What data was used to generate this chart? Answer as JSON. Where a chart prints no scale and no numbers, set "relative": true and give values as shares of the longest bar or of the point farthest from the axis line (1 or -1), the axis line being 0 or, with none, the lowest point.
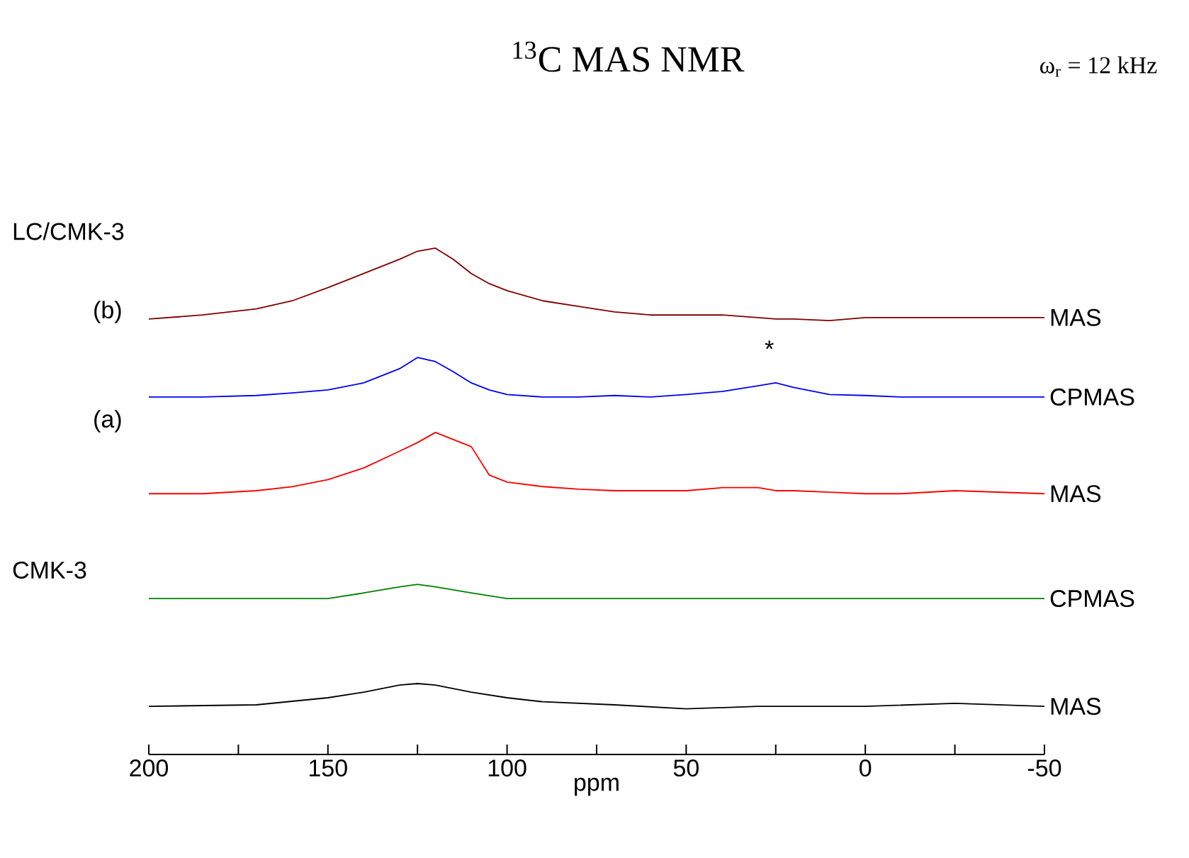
{
  "chart_data": {
    "type": "line",
    "title": "$^{13}$C MAS NMR",
    "subtitle": "ω$_{r}$ = 12 kHz",
    "xlabel": "ppm",
    "relative": true,
    "xlim": [
      200,
      -50
    ],
    "xticks": [
      200,
      {
        "value": 175,
        "label": null
      },
      150,
      {
        "value": 125,
        "label": null
      },
      100,
      {
        "value": 75,
        "label": null
      },
      50,
      {
        "value": 25,
        "label": null
      },
      0,
      {
        "value": -25,
        "label": null
      },
      -50
    ],
    "series": [
      {
        "name": "MAS",
        "color": "#800000",
        "x": [
          200,
          185,
          170,
          160,
          150,
          140,
          130,
          125,
          120,
          115,
          110,
          105,
          100,
          90,
          80,
          70,
          60,
          50,
          40,
          30,
          25,
          20,
          10,
          0,
          -10,
          -25,
          -50
        ],
        "values": [
          0.86,
          0.868,
          0.88,
          0.896,
          0.922,
          0.95,
          0.978,
          0.994,
          1.0,
          0.978,
          0.95,
          0.93,
          0.916,
          0.896,
          0.885,
          0.874,
          0.868,
          0.868,
          0.868,
          0.863,
          0.86,
          0.86,
          0.857,
          0.863,
          0.863,
          0.863,
          0.863
        ]
      },
      {
        "name": "CPMAS",
        "color": "#0000ff",
        "x": [
          200,
          185,
          170,
          160,
          150,
          140,
          130,
          125,
          120,
          115,
          110,
          105,
          100,
          90,
          80,
          70,
          60,
          50,
          40,
          30,
          25,
          20,
          10,
          0,
          -10,
          -25,
          -50
        ],
        "values": [
          0.706,
          0.706,
          0.709,
          0.714,
          0.72,
          0.734,
          0.762,
          0.784,
          0.776,
          0.756,
          0.734,
          0.72,
          0.711,
          0.706,
          0.706,
          0.709,
          0.706,
          0.711,
          0.717,
          0.728,
          0.734,
          0.725,
          0.711,
          0.709,
          0.706,
          0.706,
          0.706
        ]
      },
      {
        "name": "MAS",
        "color": "#ff0000",
        "x": [
          200,
          185,
          170,
          160,
          150,
          140,
          130,
          125,
          120,
          115,
          110,
          105,
          100,
          90,
          80,
          70,
          60,
          50,
          40,
          30,
          25,
          20,
          10,
          0,
          -10,
          -25,
          -50
        ],
        "values": [
          0.515,
          0.515,
          0.521,
          0.529,
          0.543,
          0.566,
          0.599,
          0.616,
          0.636,
          0.622,
          0.608,
          0.552,
          0.538,
          0.529,
          0.524,
          0.521,
          0.521,
          0.521,
          0.527,
          0.527,
          0.521,
          0.521,
          0.518,
          0.515,
          0.515,
          0.521,
          0.515
        ]
      },
      {
        "name": "CPMAS",
        "color": "#008000",
        "x": [
          200,
          170,
          150,
          140,
          130,
          125,
          120,
          110,
          100,
          70,
          40,
          0,
          -50
        ],
        "values": [
          0.308,
          0.308,
          0.308,
          0.319,
          0.331,
          0.336,
          0.331,
          0.319,
          0.308,
          0.308,
          0.308,
          0.308,
          0.308
        ]
      },
      {
        "name": "MAS",
        "color": "#000000",
        "x": [
          200,
          170,
          150,
          140,
          130,
          125,
          120,
          110,
          100,
          90,
          70,
          50,
          30,
          0,
          -25,
          -50
        ],
        "values": [
          0.095,
          0.098,
          0.112,
          0.123,
          0.137,
          0.14,
          0.137,
          0.123,
          0.112,
          0.104,
          0.098,
          0.09,
          0.095,
          0.095,
          0.101,
          0.095
        ]
      }
    ],
    "annotations": [
      "LC/CMK-3",
      "(b)",
      "(a)",
      "CMK-3",
      "*"
    ]
  }
}
